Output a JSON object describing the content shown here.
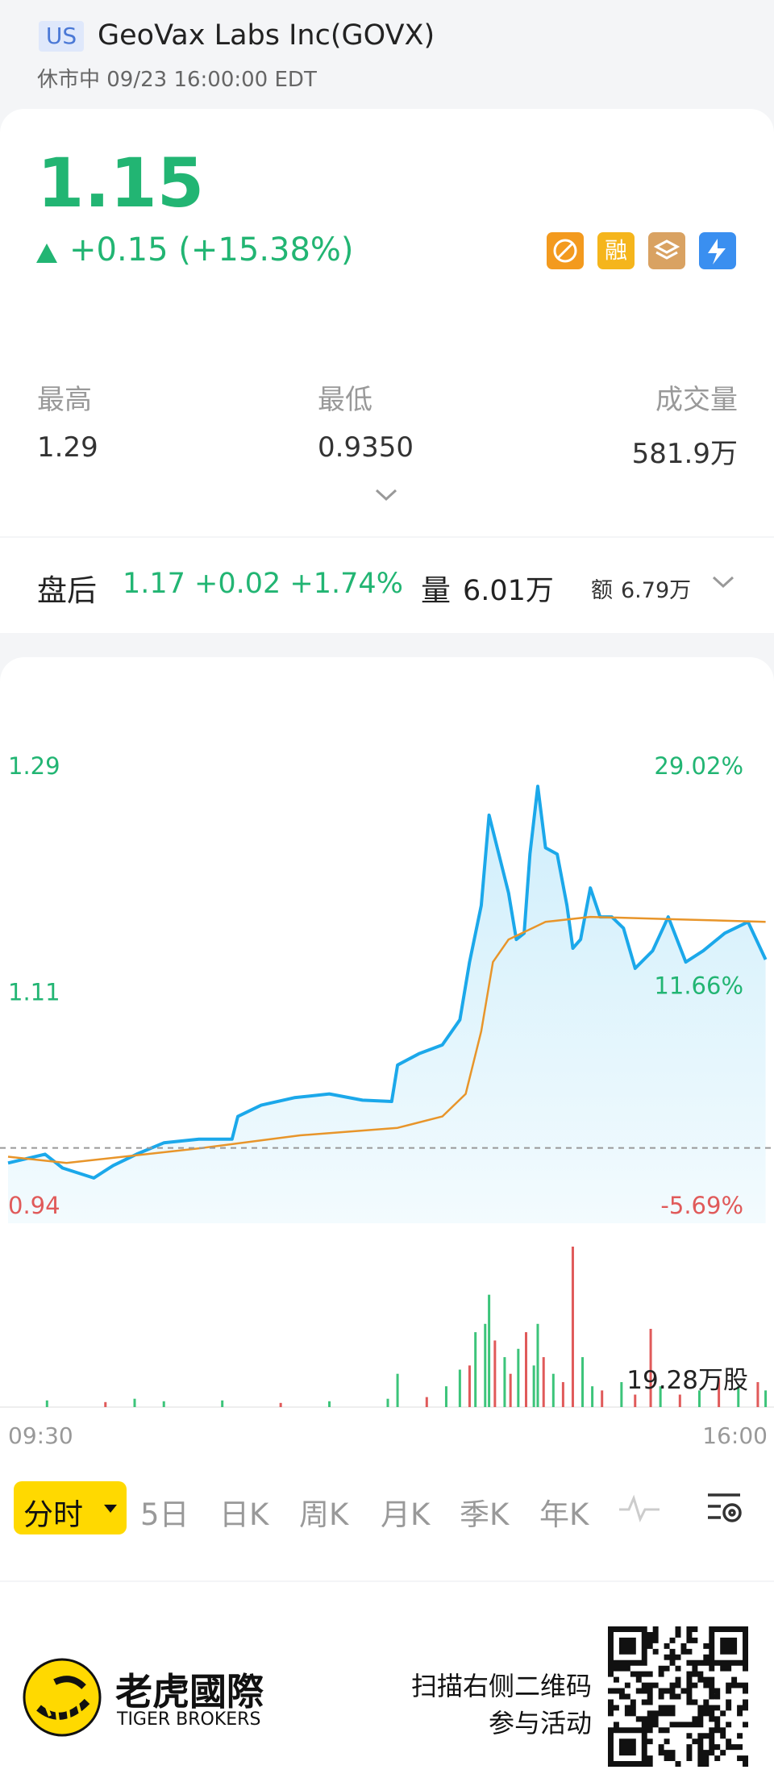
{
  "header": {
    "market": "US",
    "name": "GeoVax Labs Inc(GOVX)",
    "status": "休市中 09/23 16:00:00 EDT"
  },
  "quote": {
    "price": "1.15",
    "change": "+0.15 (+15.38%)",
    "badge_margin": "融"
  },
  "stats": [
    {
      "label": "最高",
      "value": "1.29"
    },
    {
      "label": "最低",
      "value": "0.9350"
    },
    {
      "label": "成交量",
      "value": "581.9万"
    }
  ],
  "after_hours": {
    "label": "盘后",
    "quote": "1.17 +0.02 +1.74%",
    "volume_label": "量",
    "volume": "6.01万",
    "amount_label": "额",
    "amount": "6.79万"
  },
  "chart_data": [
    {
      "type": "line",
      "xlim": [
        0,
        390
      ],
      "ylim": [
        0.94,
        1.29
      ],
      "yticks": [
        1.29,
        1.11,
        0.94
      ],
      "y2lim": [
        -5.69,
        29.02
      ],
      "y2ticks": [
        {
          "value": 29.02,
          "label": "29.02%"
        },
        {
          "value": 11.66,
          "label": "11.66%"
        },
        {
          "value": -5.69,
          "label": "-5.69%"
        }
      ],
      "ref_line": 1.0,
      "series": [
        {
          "color": "#1ba8ea",
          "x": [
            0,
            19,
            28,
            44,
            54,
            66,
            80,
            98,
            115,
            118,
            130,
            147,
            165,
            182,
            197,
            200,
            211,
            223,
            232,
            237,
            243,
            247,
            252,
            257,
            261,
            265,
            268,
            272,
            276,
            282,
            287,
            290,
            294,
            299,
            304,
            310,
            316,
            322,
            331,
            339,
            348,
            357,
            368,
            380,
            389
          ],
          "values": [
            0.988,
            0.995,
            0.984,
            0.976,
            0.986,
            0.995,
            1.004,
            1.007,
            1.007,
            1.025,
            1.034,
            1.04,
            1.043,
            1.038,
            1.037,
            1.066,
            1.075,
            1.082,
            1.102,
            1.148,
            1.193,
            1.265,
            1.234,
            1.203,
            1.166,
            1.171,
            1.234,
            1.288,
            1.239,
            1.234,
            1.193,
            1.159,
            1.166,
            1.207,
            1.184,
            1.184,
            1.175,
            1.143,
            1.157,
            1.184,
            1.148,
            1.157,
            1.171,
            1.18,
            1.15
          ]
        },
        {
          "color": "#e8952a",
          "x": [
            0,
            30,
            100,
            150,
            200,
            223,
            235,
            243,
            249,
            257,
            276,
            299,
            345,
            389
          ],
          "values": [
            0.993,
            0.988,
            1.0,
            1.01,
            1.016,
            1.025,
            1.043,
            1.093,
            1.148,
            1.166,
            1.18,
            1.184,
            1.182,
            1.18
          ]
        }
      ]
    },
    {
      "type": "bar",
      "xlim": [
        0,
        390
      ],
      "xticks": [
        {
          "value": 0,
          "label": "09:30"
        },
        {
          "value": 390,
          "label": "16:00"
        }
      ],
      "ylim": [
        0,
        192800
      ],
      "max_label": "19.28万股",
      "x": [
        20,
        50,
        65,
        80,
        110,
        140,
        165,
        195,
        200,
        215,
        225,
        232,
        237,
        240,
        245,
        247,
        250,
        255,
        258,
        262,
        266,
        270,
        272,
        275,
        280,
        285,
        290,
        295,
        300,
        305,
        315,
        322,
        330,
        335,
        345,
        355,
        365,
        375,
        385,
        389
      ],
      "values": [
        8000,
        6000,
        10000,
        7000,
        8000,
        5000,
        7000,
        10000,
        40000,
        12000,
        25000,
        45000,
        50000,
        90000,
        100000,
        135000,
        80000,
        60000,
        40000,
        70000,
        90000,
        50000,
        100000,
        60000,
        40000,
        30000,
        192800,
        60000,
        25000,
        20000,
        30000,
        15000,
        94000,
        25000,
        15000,
        20000,
        35000,
        25000,
        30000,
        20000
      ],
      "colors": [
        "#3cc47a",
        "#e05a5a",
        "#3cc47a",
        "#3cc47a",
        "#3cc47a",
        "#e05a5a",
        "#3cc47a",
        "#3cc47a",
        "#3cc47a",
        "#e05a5a",
        "#3cc47a",
        "#3cc47a",
        "#e05a5a",
        "#3cc47a",
        "#3cc47a",
        "#3cc47a",
        "#e05a5a",
        "#3cc47a",
        "#e05a5a",
        "#3cc47a",
        "#e05a5a",
        "#3cc47a",
        "#3cc47a",
        "#e05a5a",
        "#3cc47a",
        "#e05a5a",
        "#e05a5a",
        "#3cc47a",
        "#3cc47a",
        "#e05a5a",
        "#3cc47a",
        "#e05a5a",
        "#e05a5a",
        "#3cc47a",
        "#e05a5a",
        "#3cc47a",
        "#e05a5a",
        "#3cc47a",
        "#e05a5a",
        "#3cc47a"
      ]
    }
  ],
  "tabs": [
    "分时",
    "5日",
    "日K",
    "周K",
    "月K",
    "季K",
    "年K"
  ],
  "footer": {
    "brand": "老虎國際",
    "brand_en": "TIGER BROKERS",
    "promo_line1": "扫描右侧二维码",
    "promo_line2": "参与活动"
  }
}
